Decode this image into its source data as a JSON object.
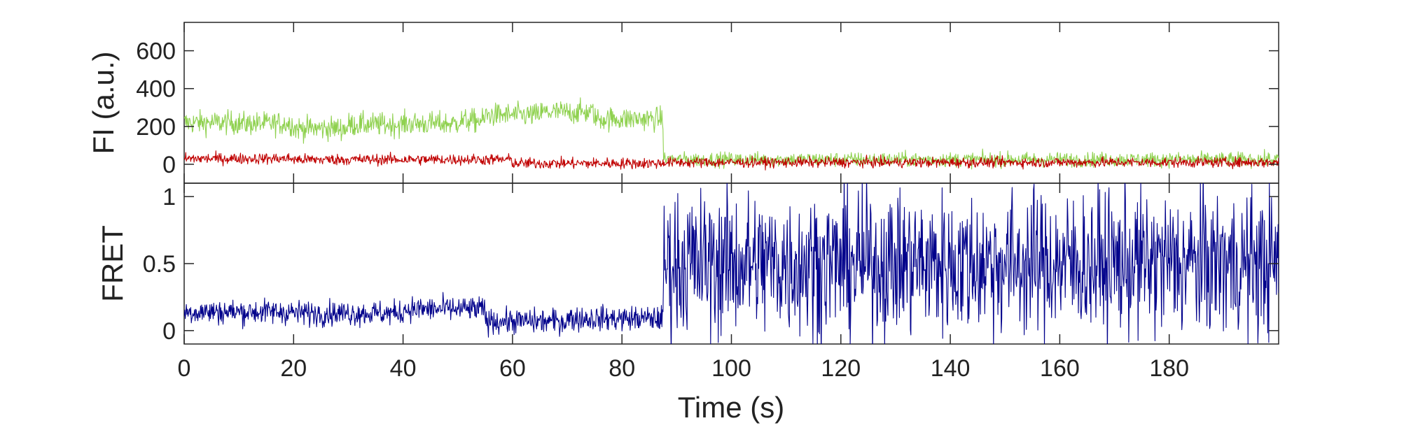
{
  "chart_data": [
    {
      "type": "line",
      "panel": "top",
      "title": "",
      "xlabel": "",
      "ylabel": "FI (a.u.)",
      "xlim": [
        0,
        200
      ],
      "ylim": [
        -100,
        750
      ],
      "yticks": [
        0,
        200,
        400,
        600
      ],
      "ytick_labels": [
        "0",
        "200",
        "400",
        "600"
      ],
      "grid": false,
      "legend": "none",
      "series": [
        {
          "color": "#8fd14f",
          "segments": [
            {
              "x": [
                0,
                10
              ],
              "y": [
                220,
                220
              ]
            },
            {
              "x": [
                10,
                20
              ],
              "y": [
                215,
                215
              ]
            },
            {
              "x": [
                20,
                30
              ],
              "y": [
                190,
                190
              ]
            },
            {
              "x": [
                30,
                40
              ],
              "y": [
                210,
                210
              ]
            },
            {
              "x": [
                40,
                50
              ],
              "y": [
                215,
                215
              ]
            },
            {
              "x": [
                50,
                55
              ],
              "y": [
                230,
                230
              ]
            },
            {
              "x": [
                55,
                65
              ],
              "y": [
                260,
                260
              ]
            },
            {
              "x": [
                65,
                75
              ],
              "y": [
                275,
                275
              ]
            },
            {
              "x": [
                75,
                87.5
              ],
              "y": [
                240,
                240
              ]
            },
            {
              "x": [
                87.5,
                200
              ],
              "y": [
                25,
                25
              ]
            }
          ],
          "spread": [
            [
              0,
              87.5,
              80
            ],
            [
              87.5,
              200,
              50
            ]
          ]
        },
        {
          "color": "#c00000",
          "segments": [
            {
              "x": [
                0,
                20
              ],
              "y": [
                30,
                30
              ]
            },
            {
              "x": [
                20,
                40
              ],
              "y": [
                25,
                25
              ]
            },
            {
              "x": [
                40,
                60
              ],
              "y": [
                25,
                25
              ]
            },
            {
              "x": [
                60,
                87.5
              ],
              "y": [
                5,
                5
              ]
            },
            {
              "x": [
                87.5,
                200
              ],
              "y": [
                10,
                10
              ]
            }
          ],
          "spread": [
            [
              0,
              87.5,
              38
            ],
            [
              87.5,
              200,
              35
            ]
          ]
        }
      ]
    },
    {
      "type": "line",
      "panel": "bottom",
      "title": "",
      "xlabel": "Time (s)",
      "ylabel": "FRET",
      "xlim": [
        0,
        200
      ],
      "ylim": [
        -0.1,
        1.1
      ],
      "xticks": [
        0,
        20,
        40,
        60,
        80,
        100,
        120,
        140,
        160,
        180
      ],
      "xtick_labels": [
        "0",
        "20",
        "40",
        "60",
        "80",
        "100",
        "120",
        "140",
        "160",
        "180"
      ],
      "yticks": [
        0,
        0.5,
        1
      ],
      "ytick_labels": [
        "0",
        "0.5",
        "1"
      ],
      "grid": false,
      "legend": "none",
      "series": [
        {
          "color": "#00008b",
          "segments": [
            {
              "x": [
                0,
                20
              ],
              "y": [
                0.14,
                0.14
              ]
            },
            {
              "x": [
                20,
                40
              ],
              "y": [
                0.13,
                0.13
              ]
            },
            {
              "x": [
                40,
                55
              ],
              "y": [
                0.16,
                0.16
              ]
            },
            {
              "x": [
                55,
                70
              ],
              "y": [
                0.07,
                0.07
              ]
            },
            {
              "x": [
                70,
                87.5
              ],
              "y": [
                0.09,
                0.09
              ]
            },
            {
              "x": [
                87.5,
                200
              ],
              "y": [
                0.5,
                0.5
              ]
            }
          ],
          "spread": [
            [
              0,
              87.5,
              0.12
            ],
            [
              87.5,
              200,
              0.7
            ]
          ]
        }
      ]
    }
  ]
}
